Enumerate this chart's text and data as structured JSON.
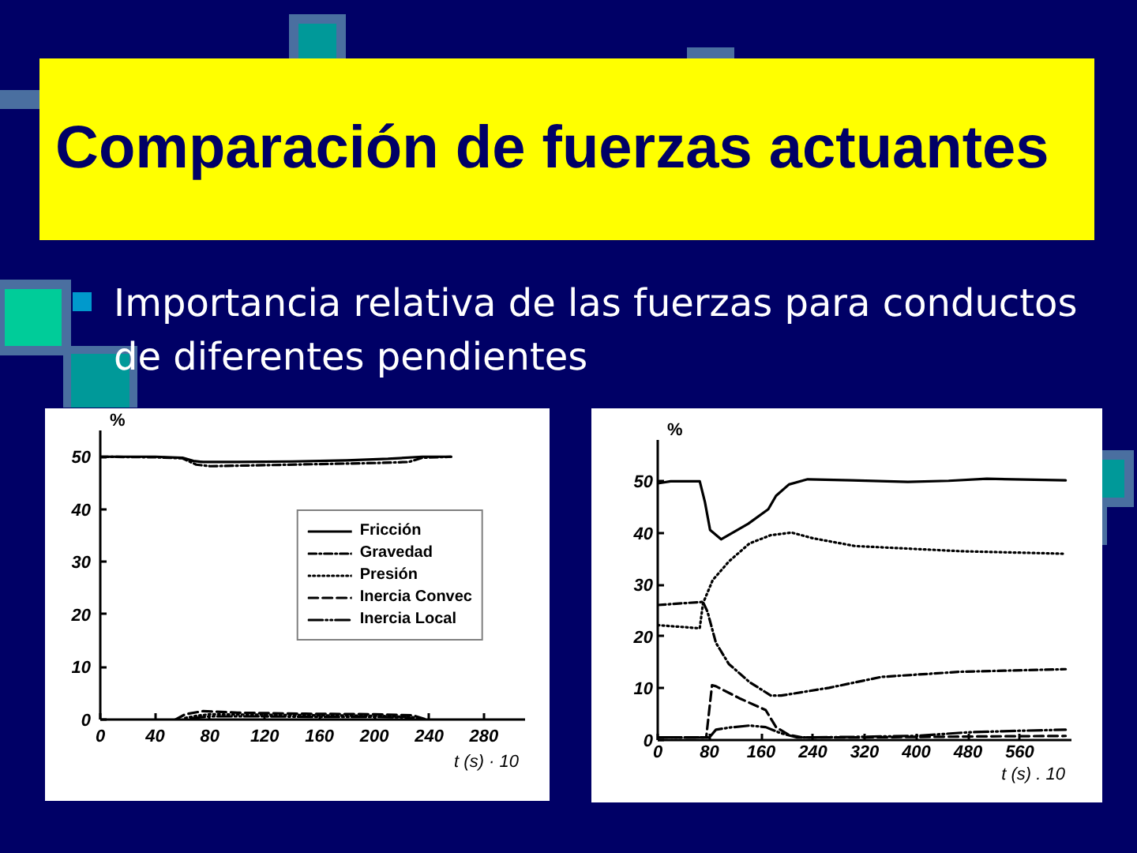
{
  "chart_data": [
    {
      "type": "line",
      "title": "Comparación de fuerzas actuantes",
      "subtitle": "Importancia relativa de las fuerzas para conductos de diferentes pendientes",
      "xlabel": "t (s) · 10",
      "ylabel": "%",
      "xlim": [
        0,
        310
      ],
      "ylim": [
        0,
        55
      ],
      "xticks": [
        0,
        40,
        80,
        120,
        160,
        200,
        240,
        280
      ],
      "yticks": [
        0,
        10,
        20,
        30,
        40,
        50
      ],
      "legend": "right",
      "series": [
        {
          "name": "Fricción",
          "color": "#000000",
          "line_style": "solid",
          "x": [
            0,
            40,
            60,
            68,
            75,
            100,
            140,
            180,
            210,
            235,
            256
          ],
          "values": [
            50,
            50,
            49.8,
            49.2,
            49,
            49,
            49.1,
            49.3,
            49.6,
            50,
            50
          ]
        },
        {
          "name": "Gravedad",
          "color": "#000000",
          "line_style": "dashdot",
          "x": [
            0,
            40,
            60,
            70,
            80,
            120,
            160,
            200,
            225,
            235,
            256
          ],
          "values": [
            50,
            49.9,
            49.7,
            48.5,
            48.2,
            48.4,
            48.6,
            48.8,
            49,
            49.8,
            50
          ]
        },
        {
          "name": "Presión",
          "color": "#000000",
          "line_style": "dotted",
          "x": [
            62,
            70,
            80,
            120,
            160,
            200,
            225,
            232
          ],
          "values": [
            0.3,
            0.7,
            1.0,
            0.9,
            0.8,
            0.7,
            0.5,
            0.3
          ]
        },
        {
          "name": "Inercia Convec",
          "color": "#000000",
          "line_style": "dashed",
          "x": [
            55,
            62,
            75,
            100,
            150,
            200,
            228,
            238
          ],
          "values": [
            0,
            1.0,
            1.6,
            1.3,
            1.1,
            1.0,
            0.8,
            0
          ]
        },
        {
          "name": "Inercia Local",
          "color": "#000000",
          "line_style": "dashdotdot",
          "x": [
            66,
            72,
            80,
            120,
            160,
            200,
            222,
            228
          ],
          "values": [
            0.2,
            0.4,
            0.6,
            0.6,
            0.5,
            0.5,
            0.4,
            0.2
          ]
        }
      ]
    },
    {
      "type": "line",
      "xlabel": "t (s) . 10",
      "ylabel": "%",
      "xlim": [
        0,
        640
      ],
      "ylim": [
        0,
        58
      ],
      "xticks": [
        0,
        80,
        160,
        240,
        320,
        400,
        480,
        560
      ],
      "yticks": [
        0,
        10,
        20,
        30,
        40,
        50
      ],
      "series": [
        {
          "color": "#000000",
          "line_style": "solid",
          "x": [
            0,
            20,
            65,
            73,
            81,
            98,
            140,
            171,
            183,
            203,
            232,
            300,
            387,
            450,
            509,
            631
          ],
          "values": [
            49.6,
            50,
            50,
            46,
            40.6,
            38.8,
            41.8,
            44.6,
            47.2,
            49.4,
            50.4,
            50.2,
            49.9,
            50.1,
            50.5,
            50.2
          ]
        },
        {
          "color": "#000000",
          "line_style": "dotted",
          "x": [
            0,
            65,
            70,
            85,
            110,
            142,
            175,
            207,
            240,
            305,
            387,
            468,
            631
          ],
          "values": [
            22.2,
            21.6,
            26.4,
            30.9,
            34.5,
            38,
            39.6,
            40.1,
            39,
            37.5,
            37,
            36.5,
            36
          ]
        },
        {
          "color": "#000000",
          "line_style": "dashdot",
          "x": [
            0,
            70,
            77,
            90,
            110,
            142,
            175,
            191,
            265,
            346,
            468,
            631
          ],
          "values": [
            26.1,
            26.7,
            24.8,
            18.8,
            14.7,
            11.2,
            8.6,
            8.6,
            10.1,
            12.2,
            13.2,
            13.7
          ]
        },
        {
          "color": "#000000",
          "line_style": "dashed",
          "x": [
            0,
            65,
            75,
            84,
            90,
            126,
            167,
            183,
            203,
            224,
            300,
            400,
            500,
            631
          ],
          "values": [
            0.5,
            0.5,
            0.5,
            10.6,
            10.4,
            8.1,
            5.8,
            2.5,
            1.0,
            0.5,
            0.5,
            0.6,
            0.7,
            0.8
          ]
        },
        {
          "color": "#000000",
          "line_style": "dashdotdot",
          "x": [
            0,
            80,
            90,
            110,
            142,
            167,
            191,
            216,
            300,
            400,
            480,
            560,
            631
          ],
          "values": [
            0.5,
            0.5,
            2.0,
            2.4,
            2.8,
            2.5,
            1.3,
            0.5,
            0.6,
            0.8,
            1.5,
            1.8,
            2.0
          ]
        }
      ]
    }
  ]
}
